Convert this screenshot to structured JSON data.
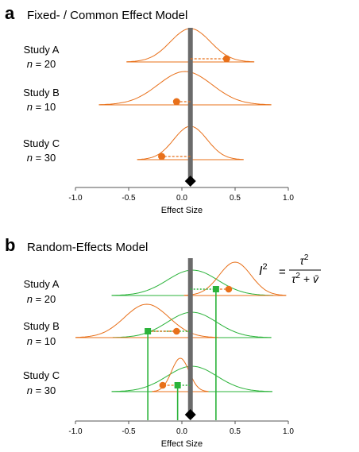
{
  "colors": {
    "fixed": "#e8701a",
    "random": "#2bb33a",
    "pooled_line": "#6b6b6b",
    "axis": "#555555",
    "diamond": "#000000"
  },
  "panels": [
    {
      "id": "a",
      "letter": "a",
      "title": "Fixed- / Common Effect Model",
      "pooled": 0.08,
      "studies": [
        {
          "name": "Study A",
          "n_prefix": "n",
          "n_text": " = 20",
          "observed": 0.42,
          "fixed_range": [
            -0.52,
            0.68
          ]
        },
        {
          "name": "Study B",
          "n_prefix": "n",
          "n_text": " = 10",
          "observed": -0.05,
          "fixed_range": [
            -0.78,
            0.84
          ]
        },
        {
          "name": "Study C",
          "n_prefix": "n",
          "n_text": " = 30",
          "observed": -0.19,
          "fixed_range": [
            -0.42,
            0.58
          ]
        }
      ],
      "xaxis": {
        "label": "Effect Size",
        "range": [
          -1.0,
          1.0
        ],
        "ticks": [
          -1.0,
          -0.5,
          0.0,
          0.5,
          1.0
        ],
        "tick_labels": [
          "-1.0",
          "-0.5",
          "0.0",
          "0.5",
          "1.0"
        ]
      }
    },
    {
      "id": "b",
      "letter": "b",
      "title": "Random-Effects Model",
      "pooled": 0.08,
      "formula": {
        "lhs": "I",
        "lhs_sup": "2",
        "equals": "=",
        "num": "τ",
        "num_sup": "2",
        "den": "τ",
        "den_sup": "2",
        "den_rest": " + v̄"
      },
      "studies": [
        {
          "name": "Study A",
          "n_prefix": "n",
          "n_text": " = 20",
          "observed": 0.44,
          "true_effect": 0.32,
          "fixed_mean": 0.32,
          "fixed_range": [
            0.02,
            0.98
          ],
          "random_range": [
            -0.66,
            0.86
          ]
        },
        {
          "name": "Study B",
          "n_prefix": "n",
          "n_text": " = 10",
          "observed": -0.05,
          "true_effect": -0.32,
          "fixed_mean": -0.32,
          "fixed_range": [
            -1.0,
            0.34
          ],
          "random_range": [
            -0.65,
            0.84
          ]
        },
        {
          "name": "Study C",
          "n_prefix": "n",
          "n_text": " = 30",
          "observed": -0.18,
          "true_effect": -0.04,
          "fixed_mean": -0.04,
          "fixed_range": [
            -0.28,
            0.25
          ],
          "random_range": [
            -0.66,
            0.85
          ]
        }
      ],
      "xaxis": {
        "label": "Effect Size",
        "range": [
          -1.0,
          1.0
        ],
        "ticks": [
          -1.0,
          -0.5,
          0.0,
          0.5,
          1.0
        ],
        "tick_labels": [
          "-1.0",
          "-0.5",
          "0.0",
          "0.5",
          "1.0"
        ]
      }
    }
  ]
}
